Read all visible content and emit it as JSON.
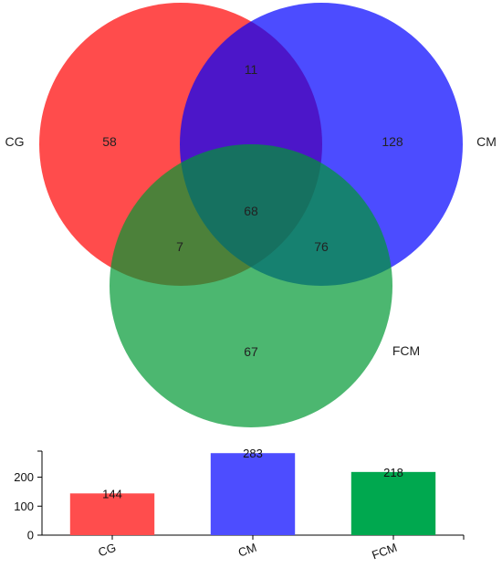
{
  "chart_data": [
    {
      "type": "venn",
      "sets": [
        {
          "name": "CG",
          "color": "#ff0000"
        },
        {
          "name": "CM",
          "color": "#0000ff"
        },
        {
          "name": "FCM",
          "color": "#009933"
        }
      ],
      "regions": [
        {
          "sets": [
            "CG"
          ],
          "value": 58
        },
        {
          "sets": [
            "CM"
          ],
          "value": 128
        },
        {
          "sets": [
            "FCM"
          ],
          "value": 67
        },
        {
          "sets": [
            "CG",
            "CM"
          ],
          "value": 11
        },
        {
          "sets": [
            "CG",
            "FCM"
          ],
          "value": 7
        },
        {
          "sets": [
            "CM",
            "FCM"
          ],
          "value": 76
        },
        {
          "sets": [
            "CG",
            "CM",
            "FCM"
          ],
          "value": 68
        }
      ]
    },
    {
      "type": "bar",
      "categories": [
        "CG",
        "CM",
        "FCM"
      ],
      "values": [
        144,
        283,
        218
      ],
      "colors": [
        "#ff4d4d",
        "#4d4dff",
        "#00a84f"
      ],
      "ylim": [
        0,
        290
      ],
      "yticks": [
        0,
        100,
        200
      ],
      "data_labels": true,
      "grid": false,
      "title": "",
      "xlabel": "",
      "ylabel": ""
    }
  ]
}
